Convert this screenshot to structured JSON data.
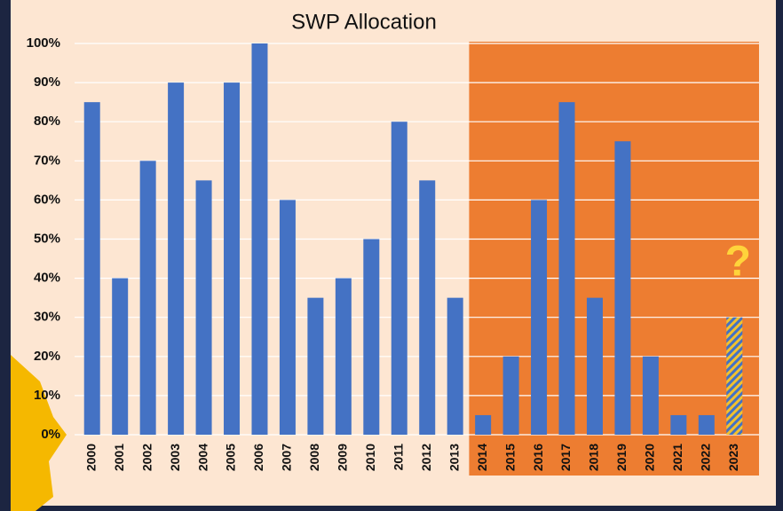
{
  "chart_data": {
    "type": "bar",
    "title": "SWP Allocation",
    "categories": [
      "2000",
      "2001",
      "2002",
      "2003",
      "2004",
      "2005",
      "2006",
      "2007",
      "2008",
      "2009",
      "2010",
      "2011",
      "2012",
      "2013",
      "2014",
      "2015",
      "2016",
      "2017",
      "2018",
      "2019",
      "2020",
      "2021",
      "2022",
      "2023"
    ],
    "values": [
      85,
      40,
      70,
      90,
      65,
      90,
      100,
      60,
      35,
      40,
      50,
      80,
      65,
      35,
      5,
      20,
      60,
      85,
      35,
      75,
      20,
      5,
      5,
      30
    ],
    "color": "#4472c4",
    "hatched": [
      false,
      false,
      false,
      false,
      false,
      false,
      false,
      false,
      false,
      false,
      false,
      false,
      false,
      false,
      false,
      false,
      false,
      false,
      false,
      false,
      false,
      false,
      false,
      true
    ],
    "hatch_color": "#f2c12e",
    "highlight": {
      "from": 14,
      "to": 23,
      "color": "#ed7d31"
    },
    "annotation": "?",
    "annotation_color": "#ffd43b",
    "ylim": [
      0,
      100
    ],
    "yticks": [
      {
        "value": 0,
        "label": "0%"
      },
      {
        "value": 10,
        "label": "10%"
      },
      {
        "value": 20,
        "label": "20%"
      },
      {
        "value": 30,
        "label": "30%"
      },
      {
        "value": 40,
        "label": "40%"
      },
      {
        "value": 50,
        "label": "50%"
      },
      {
        "value": 60,
        "label": "60%"
      },
      {
        "value": 70,
        "label": "70%"
      },
      {
        "value": 80,
        "label": "80%"
      },
      {
        "value": 90,
        "label": "90%"
      },
      {
        "value": 100,
        "label": "100%"
      }
    ],
    "grid": true
  }
}
